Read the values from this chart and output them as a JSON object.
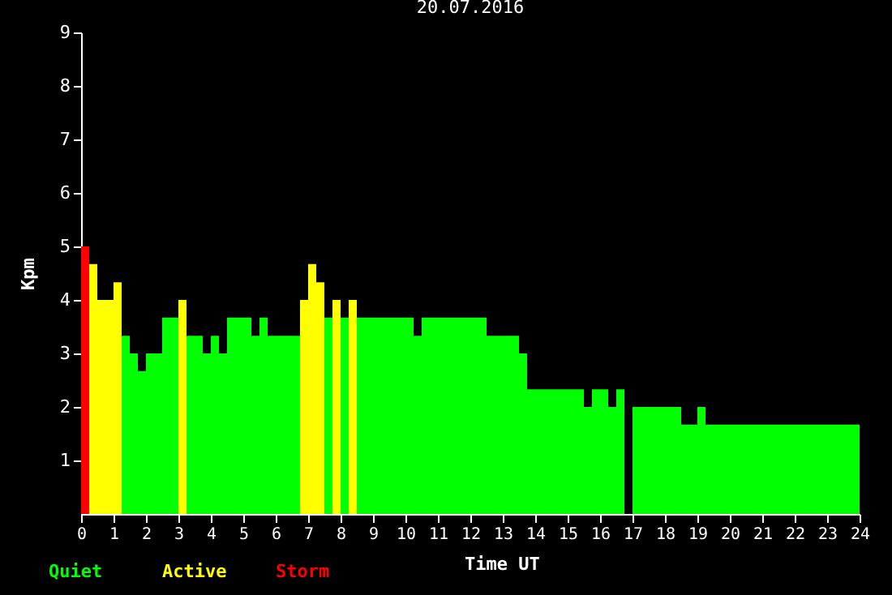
{
  "chart_data": {
    "type": "histogram",
    "title": "20.07.2016",
    "xlabel": "Time UT",
    "ylabel": "Kpm",
    "bins": [
      0,
      0.25,
      0.5,
      1,
      1.25,
      1.5,
      1.75,
      2,
      2.5,
      3,
      3.25,
      3.75,
      4,
      4.25,
      4.5,
      5.25,
      5.5,
      5.75,
      6.75,
      7,
      7.25,
      7.5,
      7.75,
      8,
      8.25,
      8.5,
      10.25,
      10.5,
      12.5,
      13.5,
      13.75,
      15.5,
      15.75,
      16.25,
      16.5,
      16.75,
      17,
      18.5,
      19,
      19.25,
      24
    ],
    "series": [
      {
        "name": "Quiet",
        "color": "#00ff00",
        "values": [
          null,
          null,
          null,
          null,
          3.33,
          3,
          2.67,
          3,
          3.67,
          null,
          3.33,
          3,
          3.33,
          3,
          3.67,
          3.33,
          3.67,
          3.33,
          null,
          null,
          null,
          3.67,
          null,
          3.67,
          null,
          3.67,
          3.33,
          3.67,
          3.33,
          3,
          2.33,
          2,
          2.33,
          2,
          2.33,
          null,
          2,
          1.67,
          2,
          1.67
        ]
      },
      {
        "name": "Active",
        "color": "#ffff00",
        "values": [
          null,
          4.67,
          4,
          4.33,
          null,
          null,
          null,
          null,
          null,
          4,
          null,
          null,
          null,
          null,
          null,
          null,
          null,
          null,
          4,
          4.67,
          4.33,
          null,
          4,
          null,
          4,
          null,
          null,
          null,
          null,
          null,
          null,
          null,
          null,
          null,
          null,
          null,
          null,
          null,
          null,
          null
        ]
      },
      {
        "name": "Storm",
        "color": "#ff0000",
        "values": [
          5,
          null,
          null,
          null,
          null,
          null,
          null,
          null,
          null,
          null,
          null,
          null,
          null,
          null,
          null,
          null,
          null,
          null,
          null,
          null,
          null,
          null,
          null,
          null,
          null,
          null,
          null,
          null,
          null,
          null,
          null,
          null,
          null,
          null,
          null,
          null,
          null,
          null,
          null,
          null
        ]
      }
    ],
    "xlim": [
      0,
      24
    ],
    "xticks": [
      0,
      1,
      2,
      3,
      4,
      5,
      6,
      7,
      8,
      9,
      10,
      11,
      12,
      13,
      14,
      15,
      16,
      17,
      18,
      19,
      20,
      21,
      22,
      23,
      24
    ],
    "ylim": [
      0,
      9
    ],
    "yticks": [
      1,
      2,
      3,
      4,
      5,
      6,
      7,
      8,
      9
    ],
    "legend": "bottom left"
  }
}
